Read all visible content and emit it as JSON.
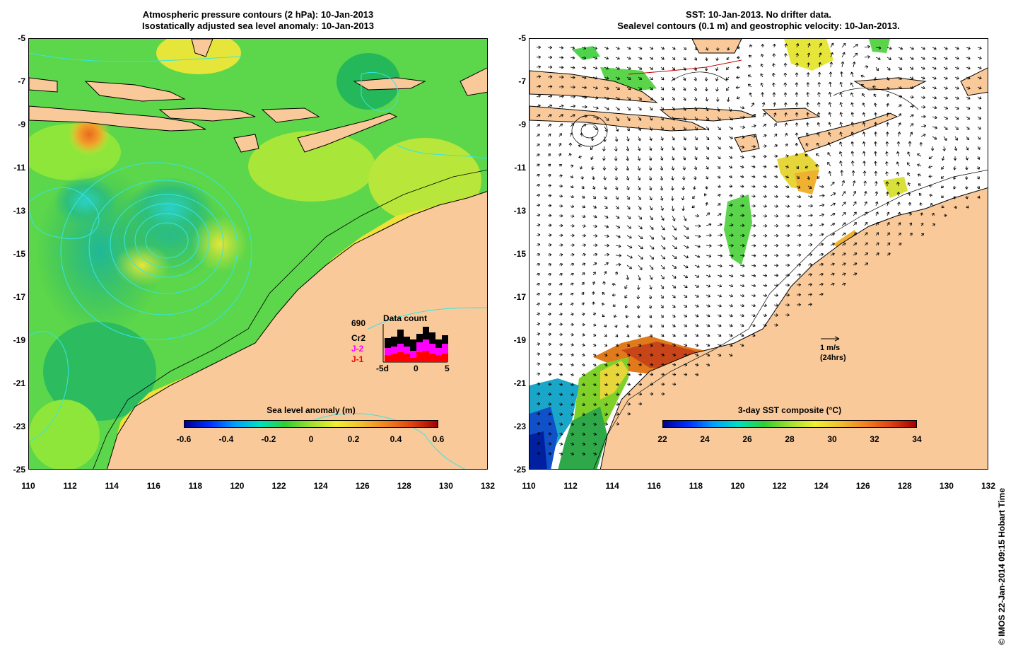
{
  "left_panel": {
    "title_line1": "Atmospheric pressure contours (2 hPa): 10-Jan-2013",
    "title_line2": "Isostatically adjusted sea level anomaly: 10-Jan-2013",
    "colorbar": {
      "title": "Sea level anomaly (m)",
      "ticks": [
        "-0.6",
        "-0.4",
        "-0.2",
        "0",
        "0.2",
        "0.4",
        "0.6"
      ],
      "range": [
        -0.6,
        0.6
      ]
    },
    "data_count": {
      "title": "Data count",
      "total": "690",
      "satellites": [
        "Cr2",
        "J-2",
        "J-1"
      ],
      "satellite_colors": [
        "#000000",
        "#ff00ff",
        "#ff0000"
      ],
      "x_ticks": [
        "-5d",
        "0",
        "5"
      ]
    }
  },
  "right_panel": {
    "title_line1": "SST: 10-Jan-2013. No drifter data.",
    "title_line2": "Sealevel contours (0.1 m) and geostrophic velocity: 10-Jan-2013.",
    "colorbar": {
      "title": "3-day SST composite (°C)",
      "ticks": [
        "22",
        "24",
        "26",
        "28",
        "30",
        "32",
        "34"
      ],
      "range": [
        22,
        34
      ]
    },
    "scale_arrow": {
      "label_line1": "1 m/s",
      "label_line2": "(24hrs)"
    }
  },
  "axes": {
    "lat_ticks": [
      "-5",
      "-7",
      "-9",
      "-11",
      "-13",
      "-15",
      "-17",
      "-19",
      "-21",
      "-23",
      "-25"
    ],
    "lon_ticks": [
      "110",
      "112",
      "114",
      "116",
      "118",
      "120",
      "122",
      "124",
      "126",
      "128",
      "130",
      "132"
    ]
  },
  "colors": {
    "land": "#f9c99a",
    "ocean_green": "#4fd34f",
    "coast_line": "#000000",
    "pressure_contour": "#33e6e6"
  },
  "credit": "© IMOS 22-Jan-2014 09:15 Hobart Time"
}
